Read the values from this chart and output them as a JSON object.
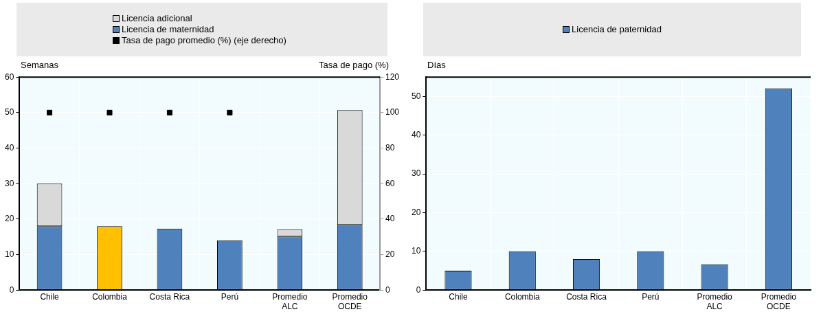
{
  "chart_data": [
    {
      "type": "bar",
      "stacked": true,
      "ylabel": "Semanas",
      "y2label": "Tasa de pago (%)",
      "categories": [
        "Chile",
        "Colombia",
        "Costa Rica",
        "Perú",
        "Promedio ALC",
        "Promedio OCDE"
      ],
      "series": [
        {
          "name": "Licencia de maternidad",
          "color": "#4f81bd",
          "colors": [
            "#4f81bd",
            "#ffc000",
            "#4f81bd",
            "#4f81bd",
            "#4f81bd",
            "#4f81bd"
          ],
          "values": [
            18,
            18,
            17.3,
            14,
            15.1,
            18.4
          ]
        },
        {
          "name": "Licencia adicional",
          "color": "#d9d9d9",
          "values": [
            12,
            0,
            0,
            0,
            2,
            32.3
          ]
        },
        {
          "name": "Tasa de pago promedio (%) (eje derecho)",
          "type": "scatter",
          "axis": "y2",
          "color": "#000000",
          "x": [
            "Chile",
            "Colombia",
            "Costa Rica",
            "Perú"
          ],
          "values": [
            100,
            100,
            100,
            100
          ]
        }
      ],
      "ylim": [
        0,
        60
      ],
      "yticks": [
        0,
        10,
        20,
        30,
        40,
        50,
        60
      ],
      "y2lim": [
        0,
        120
      ],
      "y2ticks": [
        0,
        20,
        40,
        60,
        80,
        100,
        120
      ],
      "grid": true,
      "legend": "top",
      "marker": "square"
    },
    {
      "type": "bar",
      "ylabel": "Días",
      "categories": [
        "Chile",
        "Colombia",
        "Costa Rica",
        "Perú",
        "Promedio ALC",
        "Promedio OCDE"
      ],
      "series": [
        {
          "name": "Licencia de paternidad",
          "color": "#4f81bd",
          "values": [
            5,
            10,
            8,
            10,
            6.7,
            52.1
          ]
        }
      ],
      "ylim": [
        0,
        55
      ],
      "yticks": [
        0,
        10,
        20,
        30,
        40,
        50
      ],
      "grid": true,
      "legend": "top"
    }
  ]
}
